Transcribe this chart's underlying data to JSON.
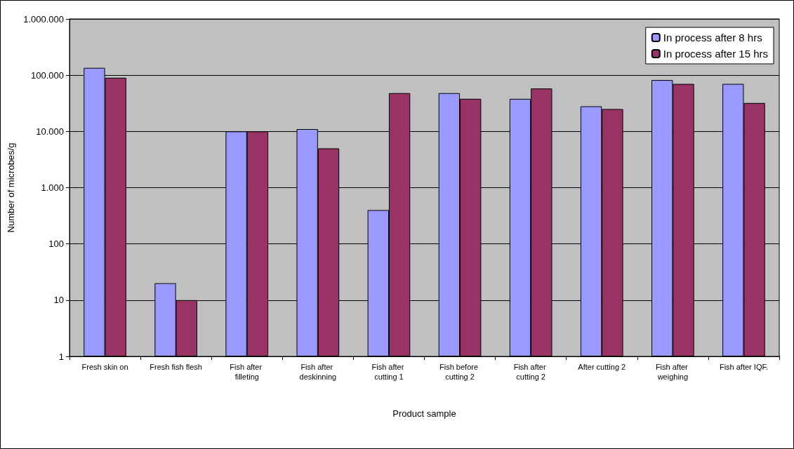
{
  "chart_data": {
    "type": "bar",
    "xlabel": "Product sample",
    "ylabel": "Number of microbes/g",
    "categories": [
      "Fresh skin on",
      "Fresh fish flesh",
      "Fish after filleting",
      "Fish after deskinning",
      "Fish after cutting 1",
      "Fish before cutting 2",
      "Fish after cutting 2",
      "After cutting 2",
      "Fish after weighing",
      "Fish after IQF."
    ],
    "series": [
      {
        "name": "In process after 8 hrs",
        "color": "#9999ff",
        "values": [
          135000,
          20,
          10000,
          11000,
          400,
          48000,
          38000,
          28000,
          82000,
          70000
        ]
      },
      {
        "name": "In process after 15 hrs",
        "color": "#993366",
        "values": [
          90000,
          10,
          10000,
          5000,
          48000,
          38000,
          58000,
          25000,
          70000,
          32000
        ]
      }
    ],
    "log": "y",
    "ylim": [
      1,
      1000000
    ],
    "yticks": [
      1,
      10,
      100,
      {
        "value": 1000,
        "label": "1.000"
      },
      {
        "value": 10000,
        "label": "10.000"
      },
      {
        "value": 100000,
        "label": "100.000"
      },
      {
        "value": 1000000,
        "label": "1.000.000"
      }
    ],
    "grid": "y",
    "legend": "top right"
  }
}
